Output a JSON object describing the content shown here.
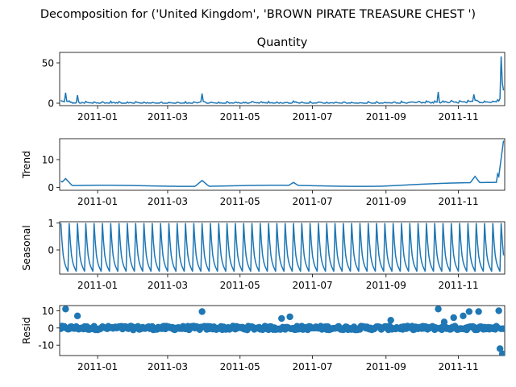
{
  "figure": {
    "suptitle": "Decomposition for ('United Kingdom', 'BROWN  PIRATE TREASURE CHEST ')",
    "line_color": "#1f77b4"
  },
  "chart_data": [
    {
      "type": "line",
      "title": "Quantity",
      "ylabel": "",
      "xlim": [
        "2011-11-29",
        "2011-12-09"
      ],
      "xaxis_type": "date",
      "ylim": [
        -3,
        63
      ],
      "yticks": [
        0,
        50
      ],
      "xtick_labels": [
        "2011-01",
        "2011-03",
        "2011-05",
        "2011-07",
        "2011-09",
        "2011-11"
      ],
      "highlights": [
        {
          "date": "2010-12-05",
          "y": 13
        },
        {
          "date": "2010-12-15",
          "y": 10
        },
        {
          "date": "2011-03-30",
          "y": 12
        },
        {
          "date": "2011-10-15",
          "y": 14
        },
        {
          "date": "2011-11-14",
          "y": 11
        },
        {
          "date": "2011-12-07",
          "y": 58
        },
        {
          "date": "2011-12-08",
          "y": 25
        }
      ]
    },
    {
      "type": "line",
      "title": "",
      "ylabel": "Trend",
      "ylim": [
        -1,
        17.5
      ],
      "yticks": [
        0,
        10
      ],
      "xtick_labels": [
        "2011-01",
        "2011-03",
        "2011-05",
        "2011-07",
        "2011-09",
        "2011-11"
      ],
      "highlights": [
        {
          "date": "2010-12-01",
          "y": 2.3
        },
        {
          "date": "2010-12-05",
          "y": 3.2
        },
        {
          "date": "2011-03-30",
          "y": 2.5
        },
        {
          "date": "2011-06-15",
          "y": 1.8
        },
        {
          "date": "2011-11-15",
          "y": 4
        },
        {
          "date": "2011-12-09",
          "y": 17
        }
      ]
    },
    {
      "type": "line",
      "title": "",
      "ylabel": "Seasonal",
      "ylim": [
        -0.9,
        1.05
      ],
      "yticks": [
        0,
        1
      ],
      "period_days": 7,
      "amplitude": [
        -0.8,
        1.0
      ],
      "xtick_labels": [
        "2011-01",
        "2011-03",
        "2011-05",
        "2011-07",
        "2011-09",
        "2011-11"
      ]
    },
    {
      "type": "scatter",
      "title": "",
      "ylabel": "Resid",
      "ylim": [
        -16,
        13
      ],
      "yticks": [
        -10,
        0,
        10
      ],
      "zero_line": true,
      "xtick_labels": [
        "2011-01",
        "2011-03",
        "2011-05",
        "2011-07",
        "2011-09",
        "2011-11"
      ],
      "outliers": [
        {
          "date": "2010-12-05",
          "y": 11
        },
        {
          "date": "2010-12-15",
          "y": 7
        },
        {
          "date": "2011-03-30",
          "y": 9.5
        },
        {
          "date": "2011-06-05",
          "y": 5.5
        },
        {
          "date": "2011-06-12",
          "y": 6.5
        },
        {
          "date": "2011-09-05",
          "y": 4.5
        },
        {
          "date": "2011-10-15",
          "y": 11
        },
        {
          "date": "2011-10-20",
          "y": 3.5
        },
        {
          "date": "2011-10-28",
          "y": 6
        },
        {
          "date": "2011-11-05",
          "y": 7
        },
        {
          "date": "2011-11-10",
          "y": 9.5
        },
        {
          "date": "2011-11-18",
          "y": 9.5
        },
        {
          "date": "2011-12-05",
          "y": 10
        },
        {
          "date": "2011-12-06",
          "y": -12
        },
        {
          "date": "2011-12-08",
          "y": -15
        }
      ]
    }
  ]
}
